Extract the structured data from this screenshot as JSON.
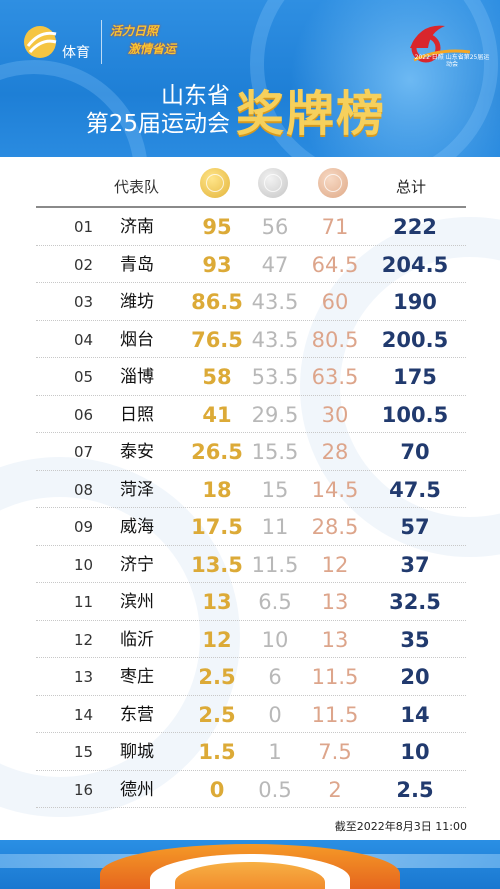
{
  "header": {
    "logo_text": "体育",
    "slogan_line1": "活力日照",
    "slogan_line2": "激情省运",
    "games_text": "2022·日照 山东省第25届运动会",
    "title_line1": "山东省",
    "title_line2": "第25届运动会",
    "title_big": "奖牌榜"
  },
  "table": {
    "col_team": "代表队",
    "col_total": "总计",
    "rows": [
      {
        "rank": "01",
        "team": "济南",
        "gold": "95",
        "silver": "56",
        "bronze": "71",
        "total": "222"
      },
      {
        "rank": "02",
        "team": "青岛",
        "gold": "93",
        "silver": "47",
        "bronze": "64.5",
        "total": "204.5"
      },
      {
        "rank": "03",
        "team": "潍坊",
        "gold": "86.5",
        "silver": "43.5",
        "bronze": "60",
        "total": "190"
      },
      {
        "rank": "04",
        "team": "烟台",
        "gold": "76.5",
        "silver": "43.5",
        "bronze": "80.5",
        "total": "200.5"
      },
      {
        "rank": "05",
        "team": "淄博",
        "gold": "58",
        "silver": "53.5",
        "bronze": "63.5",
        "total": "175"
      },
      {
        "rank": "06",
        "team": "日照",
        "gold": "41",
        "silver": "29.5",
        "bronze": "30",
        "total": "100.5"
      },
      {
        "rank": "07",
        "team": "泰安",
        "gold": "26.5",
        "silver": "15.5",
        "bronze": "28",
        "total": "70"
      },
      {
        "rank": "08",
        "team": "菏泽",
        "gold": "18",
        "silver": "15",
        "bronze": "14.5",
        "total": "47.5"
      },
      {
        "rank": "09",
        "team": "威海",
        "gold": "17.5",
        "silver": "11",
        "bronze": "28.5",
        "total": "57"
      },
      {
        "rank": "10",
        "team": "济宁",
        "gold": "13.5",
        "silver": "11.5",
        "bronze": "12",
        "total": "37"
      },
      {
        "rank": "11",
        "team": "滨州",
        "gold": "13",
        "silver": "6.5",
        "bronze": "13",
        "total": "32.5"
      },
      {
        "rank": "12",
        "team": "临沂",
        "gold": "12",
        "silver": "10",
        "bronze": "13",
        "total": "35"
      },
      {
        "rank": "13",
        "team": "枣庄",
        "gold": "2.5",
        "silver": "6",
        "bronze": "11.5",
        "total": "20"
      },
      {
        "rank": "14",
        "team": "东营",
        "gold": "2.5",
        "silver": "0",
        "bronze": "11.5",
        "total": "14"
      },
      {
        "rank": "15",
        "team": "聊城",
        "gold": "1.5",
        "silver": "1",
        "bronze": "7.5",
        "total": "10"
      },
      {
        "rank": "16",
        "team": "德州",
        "gold": "0",
        "silver": "0.5",
        "bronze": "2",
        "total": "2.5"
      }
    ]
  },
  "footer": {
    "cutoff_text": "截至2022年8月3日 11:00"
  },
  "colors": {
    "header_blue": "#1e7fd6",
    "gold": "#dcaa37",
    "silver": "#b8b8b8",
    "bronze": "#dda58b",
    "total": "#213a6e"
  }
}
